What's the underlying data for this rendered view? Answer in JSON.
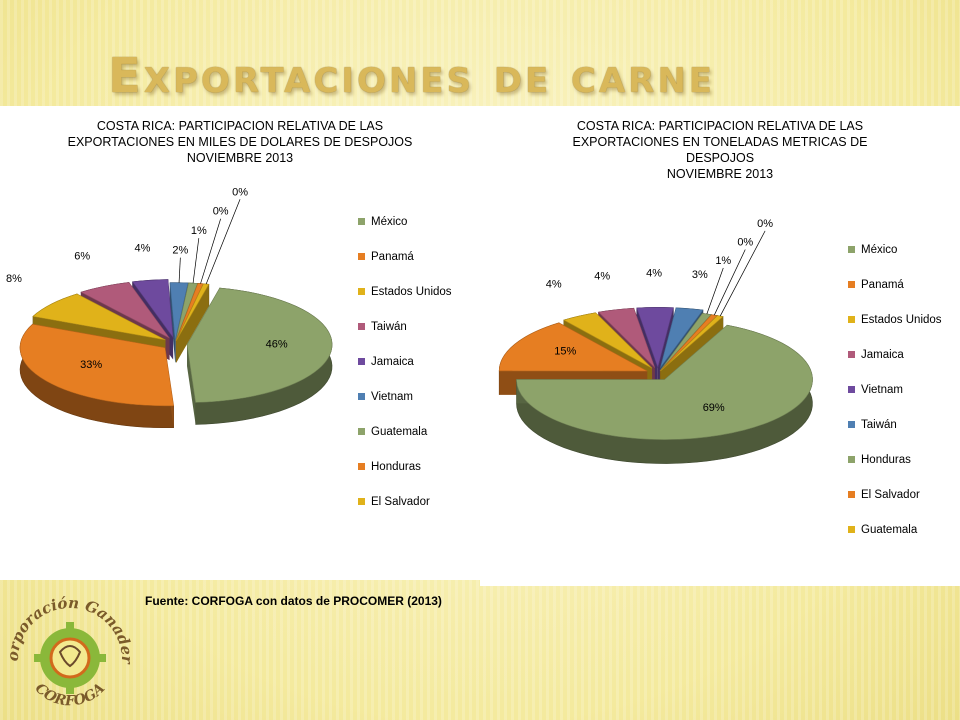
{
  "slide_title": "Exportaciones de carne",
  "source_note": "Fuente: CORFOGA con datos de PROCOMER (2013)",
  "logo": {
    "text_top": "Corporación Ganadera",
    "text_bottom": "CORFOGA"
  },
  "colors": {
    "green": "#8da36a",
    "orange": "#e67e22",
    "gold": "#e0b21a",
    "rose": "#b05a7a",
    "purple": "#6e4a9e",
    "blue": "#4f7fb2"
  },
  "chart_data": [
    {
      "type": "pie",
      "style": "3d-exploded",
      "title": "COSTA RICA: PARTICIPACION RELATIVA DE LAS EXPORTACIONES EN MILES DE DOLARES DE DESPOJOS NOVIEMBRE 2013",
      "title_lines": [
        "COSTA RICA: PARTICIPACION RELATIVA DE LAS",
        "EXPORTACIONES EN MILES DE DOLARES DE DESPOJOS",
        "NOVIEMBRE 2013"
      ],
      "legend_position": "right",
      "categories": [
        "México",
        "Panamá",
        "Estados Unidos",
        "Taiwán",
        "Jamaica",
        "Vietnam",
        "Guatemala",
        "Honduras",
        "El Salvador"
      ],
      "values": [
        46,
        33,
        8,
        6,
        4,
        2,
        1,
        0,
        0
      ],
      "labels": [
        "46%",
        "33%",
        "8%",
        "6%",
        "4%",
        "2%",
        "1%",
        "0%",
        "0%"
      ],
      "colors": [
        "#8da36a",
        "#e67e22",
        "#e0b21a",
        "#b05a7a",
        "#6e4a9e",
        "#4f7fb2",
        "#8da36a",
        "#e67e22",
        "#e0b21a"
      ]
    },
    {
      "type": "pie",
      "style": "3d-exploded",
      "title": "COSTA RICA: PARTICIPACION RELATIVA DE LAS EXPORTACIONES EN TONELADAS METRICAS DE DESPOJOS NOVIEMBRE 2013",
      "title_lines": [
        "COSTA RICA: PARTICIPACION RELATIVA DE LAS",
        "EXPORTACIONES EN TONELADAS METRICAS DE",
        "DESPOJOS",
        "NOVIEMBRE 2013"
      ],
      "legend_position": "right",
      "categories": [
        "México",
        "Panamá",
        "Estados Unidos",
        "Jamaica",
        "Vietnam",
        "Taiwán",
        "Honduras",
        "El Salvador",
        "Guatemala"
      ],
      "values": [
        69,
        15,
        4,
        4,
        4,
        3,
        1,
        0,
        0
      ],
      "labels": [
        "69%",
        "15%",
        "4%",
        "4%",
        "4%",
        "3%",
        "1%",
        "0%",
        "0%"
      ],
      "colors": [
        "#8da36a",
        "#e67e22",
        "#e0b21a",
        "#b05a7a",
        "#6e4a9e",
        "#4f7fb2",
        "#8da36a",
        "#e67e22",
        "#e0b21a"
      ]
    }
  ]
}
